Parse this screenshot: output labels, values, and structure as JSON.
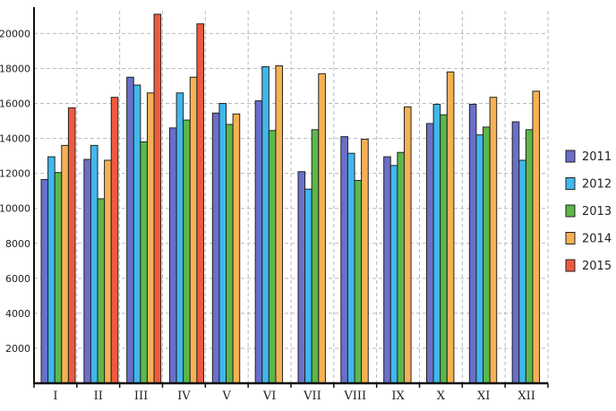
{
  "chart_data": {
    "type": "bar",
    "categories": [
      "I",
      "II",
      "III",
      "IV",
      "V",
      "VI",
      "VII",
      "VIII",
      "IX",
      "X",
      "XI",
      "XII"
    ],
    "series": [
      {
        "name": "2011",
        "color": "#6a6fc9",
        "values": [
          11650,
          12800,
          17500,
          14600,
          15450,
          16150,
          12100,
          14100,
          12950,
          14850,
          15950,
          14950
        ]
      },
      {
        "name": "2012",
        "color": "#3fb8ee",
        "values": [
          12950,
          13600,
          17050,
          16600,
          16000,
          18100,
          11100,
          13150,
          12450,
          15950,
          14200,
          12750
        ]
      },
      {
        "name": "2013",
        "color": "#5cb848",
        "values": [
          12050,
          10550,
          13800,
          15050,
          14800,
          14450,
          14500,
          11600,
          13200,
          15350,
          14650,
          14500
        ]
      },
      {
        "name": "2014",
        "color": "#f7b154",
        "values": [
          13600,
          12750,
          16600,
          17500,
          15400,
          18150,
          17700,
          13950,
          15800,
          17800,
          16350,
          16700
        ]
      },
      {
        "name": "2015",
        "color": "#ee5a3e",
        "values": [
          15750,
          16350,
          21100,
          20550,
          null,
          null,
          null,
          null,
          null,
          null,
          null,
          null
        ]
      }
    ],
    "y_ticks": [
      "2000",
      "4000",
      "6000",
      "8000",
      "10000",
      "12000",
      "14000",
      "16000",
      "18000",
      "20000"
    ],
    "ylim": [
      0,
      21300
    ],
    "grid": true,
    "legend_position": "right"
  }
}
